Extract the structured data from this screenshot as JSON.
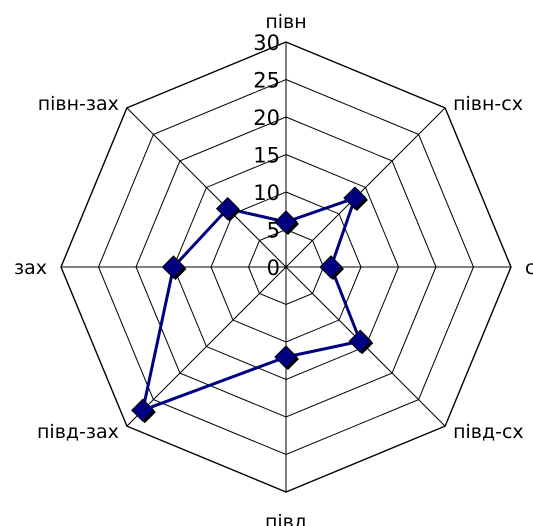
{
  "chart_data": {
    "type": "radar",
    "categories": [
      "півн",
      "півн-сх",
      "сх",
      "півд-сх",
      "півд",
      "півд-зах",
      "зах",
      "півн-зах"
    ],
    "series": [
      {
        "values": [
          6,
          13,
          6,
          14,
          12,
          27,
          15,
          11
        ]
      }
    ],
    "ticks": [
      0,
      5,
      10,
      15,
      20,
      25,
      30
    ],
    "rlim": [
      0,
      30
    ],
    "grid": true,
    "line_color": "#000080",
    "marker": "diamond",
    "marker_color": "#000080"
  }
}
